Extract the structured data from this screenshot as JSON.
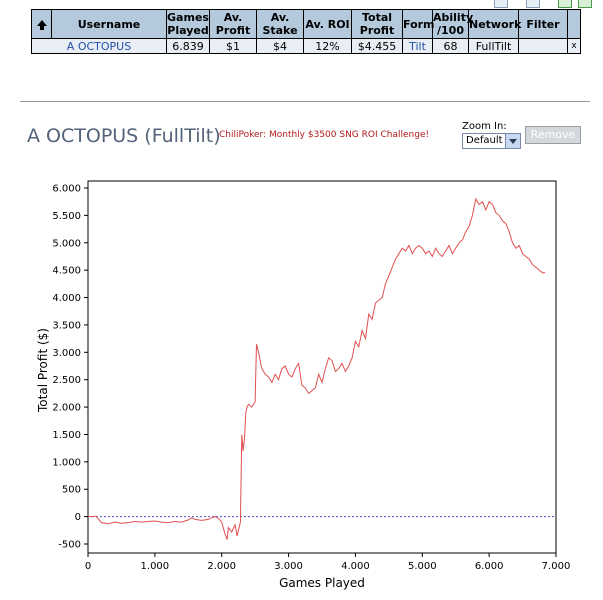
{
  "table": {
    "headers": {
      "username": "Username",
      "games_played": [
        "Games",
        "Played"
      ],
      "av_profit": [
        "Av.",
        "Profit"
      ],
      "av_stake": [
        "Av.",
        "Stake"
      ],
      "av_roi": "Av. ROI",
      "total_profit": [
        "Total",
        "Profit"
      ],
      "form": "Form",
      "ability": [
        "Ability",
        "/100"
      ],
      "network": "Network",
      "filter": "Filter"
    },
    "row": {
      "username": "A OCTOPUS",
      "games_played": "6.839",
      "av_profit": "$1",
      "av_stake": "$4",
      "av_roi": "12%",
      "total_profit": "$4.455",
      "form": "Tilt",
      "ability": "68",
      "network": "FullTilt",
      "filter": "x"
    }
  },
  "player": {
    "name": "A OCTOPUS",
    "network": "FullTilt"
  },
  "challenge_text": "ChiliPoker: Monthly $3500 SNG ROI Challenge!",
  "zoom": {
    "label": "Zoom In:",
    "selected": "Default"
  },
  "remove_label": "Remove",
  "colors": {
    "line": "#e05050",
    "zero_line": "#5050c8",
    "header_bg": "#b5c9dc",
    "row_bg": "#e9eef4"
  },
  "chart_data": {
    "type": "line",
    "xlabel": "Games Played",
    "ylabel": "Total Profit ($)",
    "xlim": [
      0,
      7000
    ],
    "ylim": [
      -500,
      6000
    ],
    "x_ticks": [
      0,
      1000,
      2000,
      3000,
      4000,
      5000,
      6000,
      7000
    ],
    "x_tick_labels": [
      "0",
      "1.000",
      "2.000",
      "3.000",
      "4.000",
      "5.000",
      "6.000",
      "7.000"
    ],
    "y_ticks": [
      -500,
      0,
      500,
      1000,
      1500,
      2000,
      2500,
      3000,
      3500,
      4000,
      4500,
      5000,
      5500,
      6000
    ],
    "y_tick_labels": [
      "-500",
      "0",
      "500",
      "1.000",
      "1.500",
      "2.000",
      "2.500",
      "3.000",
      "3.500",
      "4.000",
      "4.500",
      "5.000",
      "5.500",
      "6.000"
    ],
    "zero_line": true,
    "series": [
      {
        "x": [
          0,
          60,
          120,
          160,
          200,
          300,
          400,
          500,
          600,
          700,
          800,
          900,
          1000,
          1100,
          1200,
          1300,
          1400,
          1500,
          1550,
          1600,
          1700,
          1800,
          1850,
          1900,
          1950,
          2000,
          2050,
          2080,
          2100,
          2150,
          2200,
          2230,
          2260,
          2280,
          2300,
          2320,
          2340,
          2360,
          2380,
          2400,
          2450,
          2500,
          2520,
          2550,
          2600,
          2650,
          2700,
          2750,
          2800,
          2850,
          2900,
          2950,
          3000,
          3050,
          3100,
          3150,
          3200,
          3250,
          3300,
          3350,
          3400,
          3450,
          3500,
          3550,
          3600,
          3650,
          3700,
          3750,
          3800,
          3850,
          3900,
          3950,
          4000,
          4050,
          4100,
          4150,
          4200,
          4250,
          4300,
          4350,
          4400,
          4450,
          4500,
          4550,
          4600,
          4650,
          4700,
          4750,
          4800,
          4850,
          4900,
          4950,
          5000,
          5050,
          5100,
          5150,
          5200,
          5250,
          5300,
          5350,
          5400,
          5450,
          5500,
          5550,
          5600,
          5650,
          5700,
          5750,
          5800,
          5850,
          5900,
          5950,
          6000,
          6050,
          6100,
          6150,
          6200,
          6250,
          6300,
          6350,
          6400,
          6450,
          6500,
          6550,
          6600,
          6650,
          6700,
          6750,
          6800,
          6839
        ],
        "y": [
          0,
          0,
          10,
          -50,
          -110,
          -130,
          -100,
          -120,
          -110,
          -90,
          -100,
          -90,
          -80,
          -100,
          -110,
          -90,
          -100,
          -60,
          -20,
          -50,
          -70,
          -50,
          -20,
          0,
          -30,
          -100,
          -320,
          -420,
          -200,
          -280,
          -150,
          -350,
          -200,
          -100,
          1500,
          1200,
          1400,
          1900,
          2000,
          2050,
          2000,
          2100,
          3150,
          3000,
          2700,
          2600,
          2550,
          2450,
          2600,
          2500,
          2700,
          2750,
          2600,
          2550,
          2700,
          2800,
          2400,
          2350,
          2250,
          2300,
          2350,
          2600,
          2450,
          2700,
          2900,
          2850,
          2650,
          2700,
          2800,
          2650,
          2750,
          2900,
          3200,
          3100,
          3400,
          3250,
          3700,
          3600,
          3900,
          3950,
          4000,
          4250,
          4400,
          4550,
          4700,
          4800,
          4900,
          4850,
          4950,
          4800,
          4900,
          4950,
          4900,
          4800,
          4850,
          4750,
          4900,
          4800,
          4750,
          4850,
          4950,
          4800,
          4900,
          5000,
          5050,
          5200,
          5300,
          5500,
          5800,
          5700,
          5750,
          5600,
          5750,
          5700,
          5550,
          5500,
          5400,
          5350,
          5200,
          5000,
          4900,
          4950,
          4800,
          4750,
          4700,
          4600,
          4550,
          4500,
          4450,
          4455
        ]
      }
    ]
  }
}
